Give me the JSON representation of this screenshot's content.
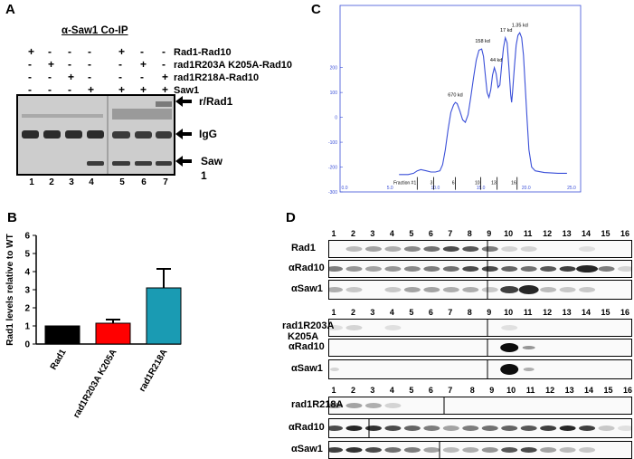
{
  "panels": {
    "A": "A",
    "B": "B",
    "C": "C",
    "D": "D"
  },
  "panel_a": {
    "title": "α-Saw1 Co-IP",
    "row_labels": [
      "Rad1-Rad10",
      "rad1R203A K205A-Rad10",
      "rad1R218A-Rad10",
      "Saw1"
    ],
    "signs": [
      [
        "+",
        "-",
        "-",
        "-",
        "+",
        "-",
        "-"
      ],
      [
        "-",
        "+",
        "-",
        "-",
        "-",
        "+",
        "-"
      ],
      [
        "-",
        "-",
        "+",
        "-",
        "-",
        "-",
        "+"
      ],
      [
        "-",
        "-",
        "-",
        "+",
        "+",
        "+",
        "+"
      ]
    ],
    "lanes": [
      "1",
      "2",
      "3",
      "4",
      "5",
      "6",
      "7"
    ],
    "band_labels": {
      "rad1": "r/Rad1",
      "igg": "IgG",
      "saw1": "Saw",
      "saw1_b": "1"
    }
  },
  "panel_c": {
    "fraction_label": "Fraction #",
    "fractions": [
      "1",
      "3",
      "6",
      "10",
      "13",
      "16"
    ],
    "peaks": [
      "670 kd",
      "158 kd",
      "44 kd",
      "17 kd",
      "1.35 kd"
    ]
  },
  "panel_d": {
    "lanes": [
      "1",
      "2",
      "3",
      "4",
      "5",
      "6",
      "7",
      "8",
      "9",
      "10",
      "11",
      "12",
      "13",
      "14",
      "15",
      "16"
    ],
    "group1": [
      "Rad1",
      "αRad10",
      "αSaw1"
    ],
    "group2": [
      "rad1R203A",
      "K205A",
      "αRad10",
      "αSaw1"
    ],
    "group3": [
      "rad1R218A",
      "αRad10",
      "αSaw1"
    ]
  },
  "chart_data": [
    {
      "type": "bar",
      "title": "",
      "categories": [
        "Rad1",
        "rad1R203A K205A",
        "rad1R218A"
      ],
      "values": [
        1.0,
        1.15,
        3.1
      ],
      "errors": [
        0,
        0.2,
        1.05
      ],
      "colors": [
        "#000000",
        "#ff0000",
        "#1a9bb3"
      ],
      "xlabel": "",
      "ylabel": "Rad1 levels relative to WT",
      "ylim": [
        0,
        6
      ],
      "yticks": [
        "0",
        "1",
        "2",
        "3",
        "4",
        "5",
        "6"
      ]
    },
    {
      "type": "line",
      "title": "",
      "xlabel": "",
      "ylabel": "",
      "xlim": [
        -5,
        260
      ],
      "ylim": [
        -300,
        450
      ],
      "xticks": [
        "0.0",
        "5.0",
        "10.0",
        "15.0",
        "20.0",
        "25.0"
      ],
      "yticks": [
        "-300",
        "-200",
        "-100",
        "0",
        "100",
        "200"
      ],
      "color": "#3a4fd8"
    }
  ]
}
